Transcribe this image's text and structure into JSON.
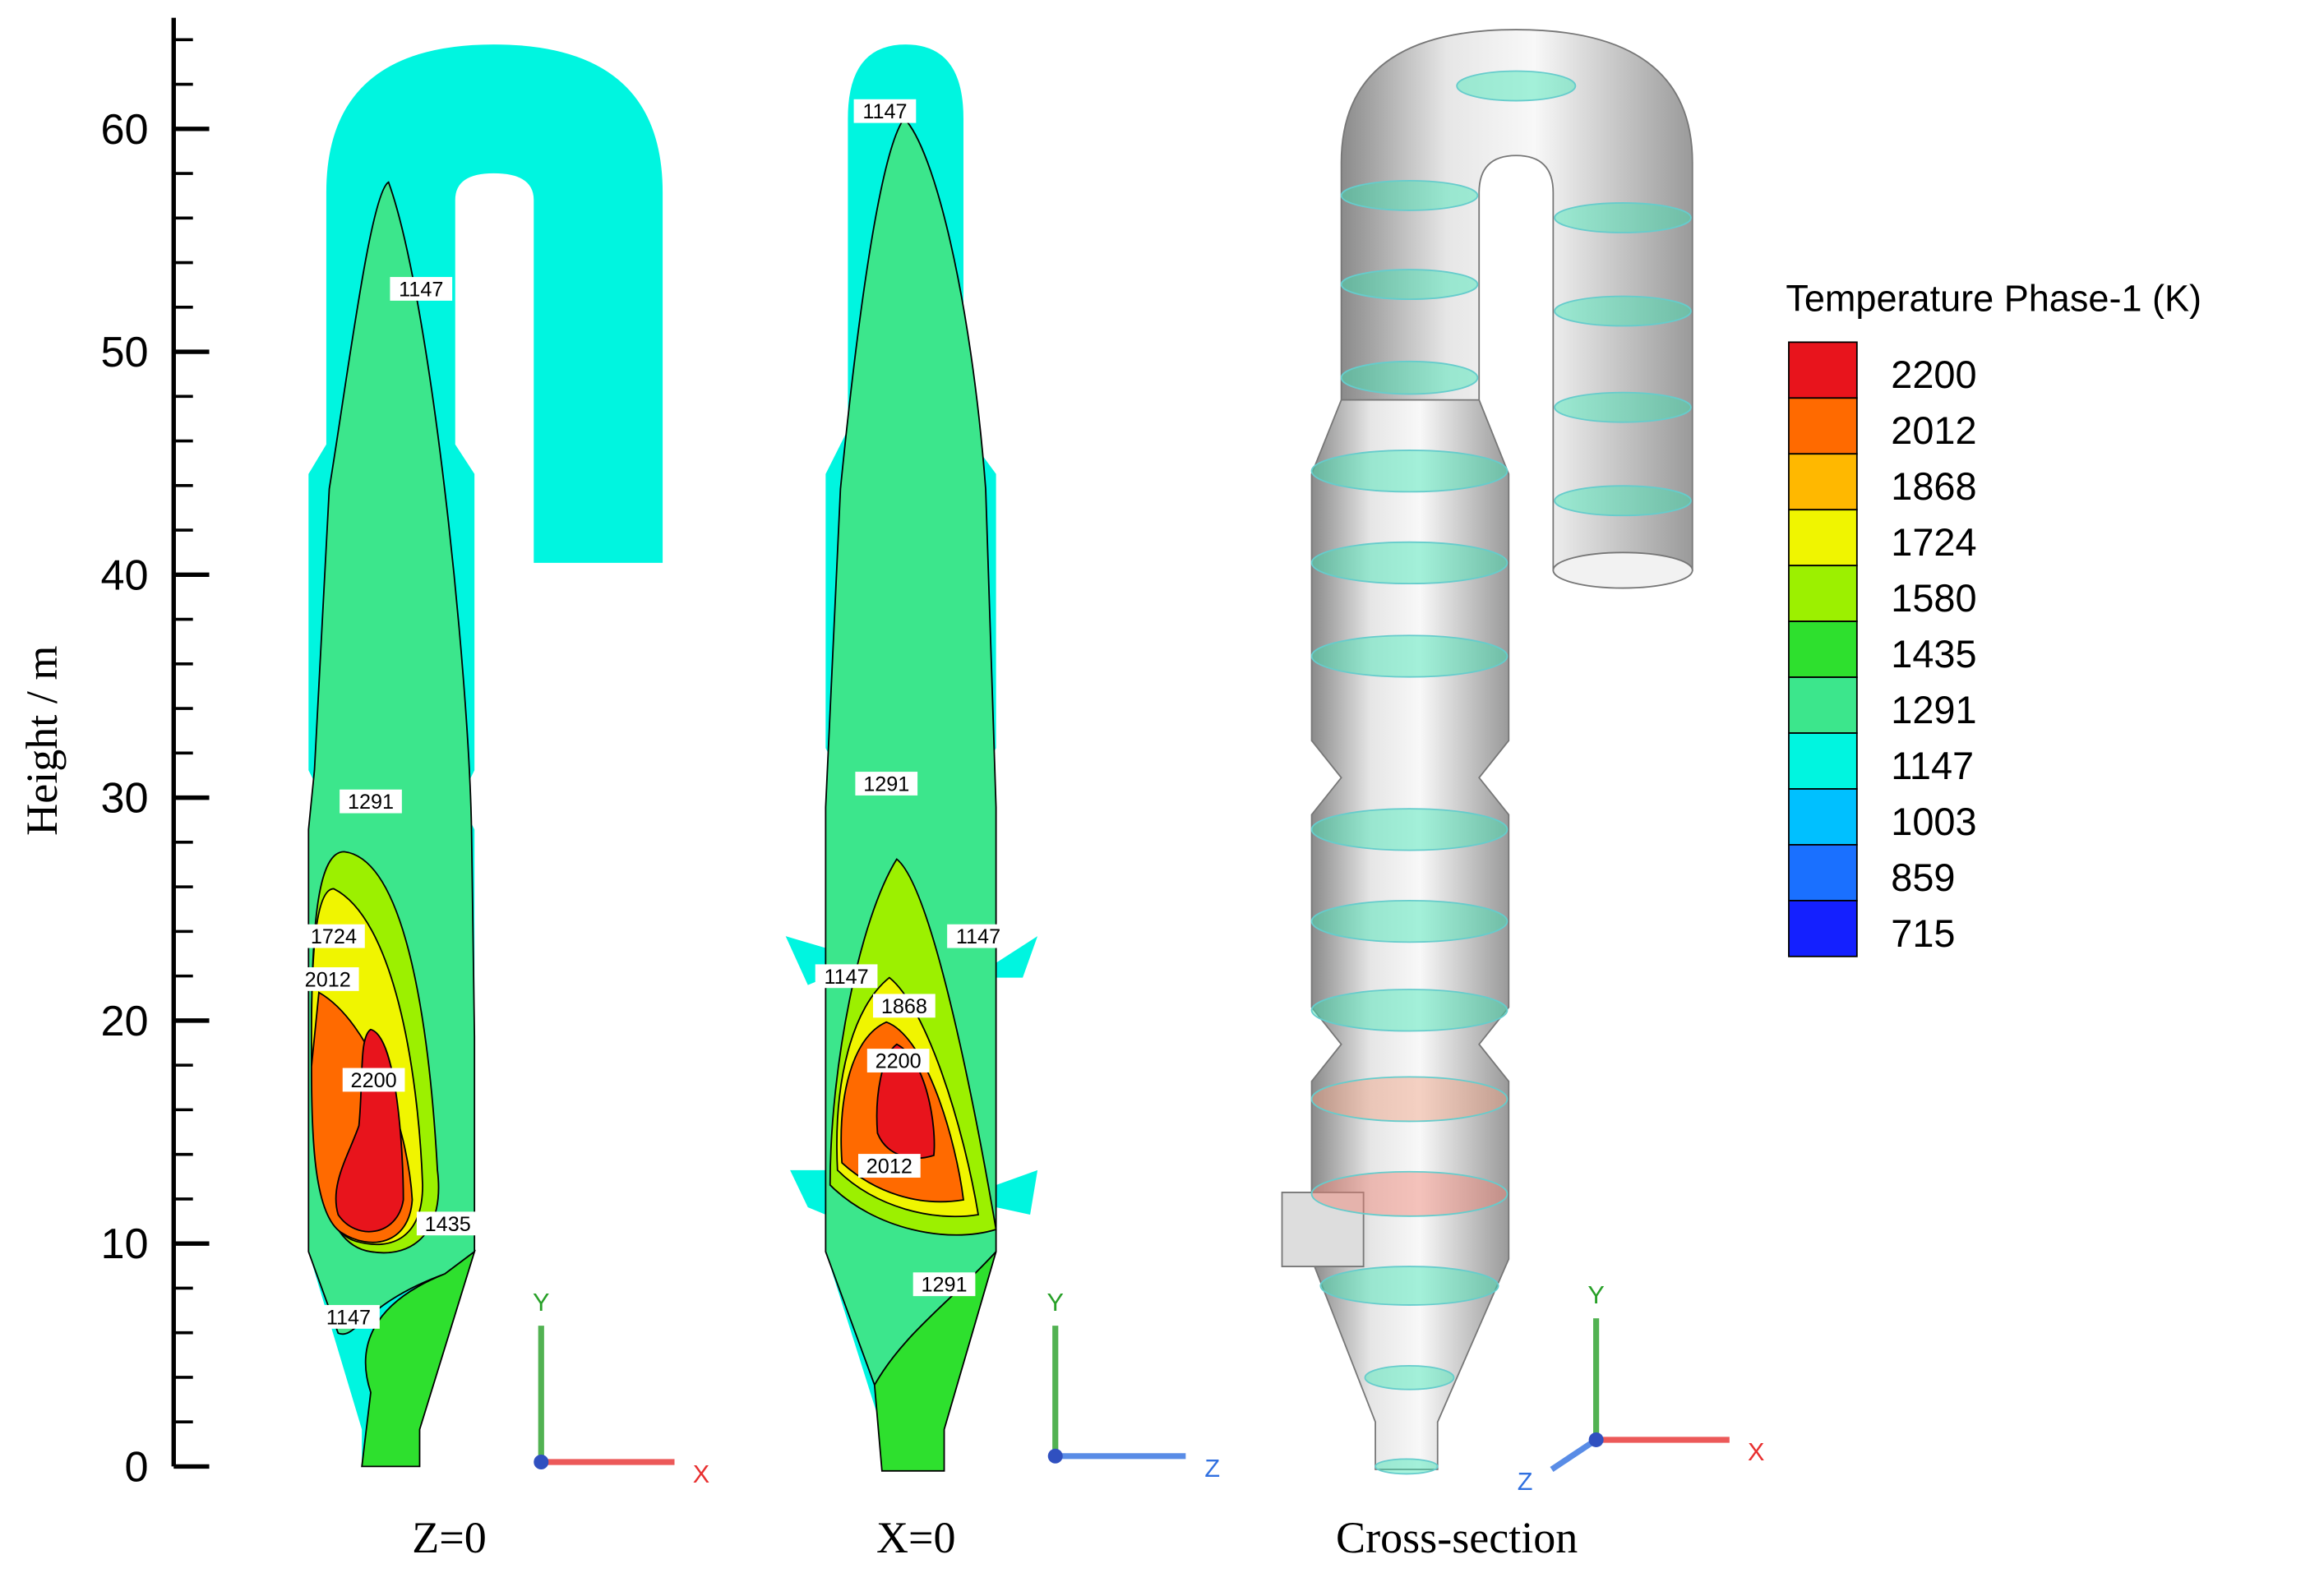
{
  "chart_data": {
    "type": "contour",
    "y_label": "Height / m",
    "ylim": [
      0,
      65
    ],
    "yticks": [
      0,
      10,
      20,
      30,
      40,
      50,
      60
    ],
    "yticks_minor": [
      2,
      4,
      6,
      8,
      12,
      14,
      16,
      18,
      22,
      24,
      26,
      28,
      32,
      34,
      36,
      38,
      42,
      44,
      46,
      48,
      52,
      54,
      56,
      58,
      62,
      64
    ],
    "panels": [
      {
        "caption": "Z=0",
        "contour_labels": [
          1147,
          1291,
          1724,
          2012,
          2200,
          1435,
          1147
        ],
        "axes": [
          "Y",
          "X"
        ]
      },
      {
        "caption": "X=0",
        "contour_labels": [
          1147,
          1291,
          1147,
          1147,
          1868,
          2200,
          2012,
          1291
        ],
        "axes": [
          "Y",
          "Z"
        ]
      },
      {
        "caption": "Cross-section",
        "axes": [
          "Y",
          "Z",
          "X"
        ]
      }
    ],
    "legend": {
      "title": "Temperature Phase-1 (K)",
      "levels": [
        2200,
        2012,
        1868,
        1724,
        1580,
        1435,
        1291,
        1147,
        1003,
        859,
        715
      ],
      "colors": [
        "#e8141c",
        "#ff6a00",
        "#ffb800",
        "#f0f500",
        "#9cf000",
        "#2ee02e",
        "#3ce68c",
        "#00f5e0",
        "#00c0ff",
        "#1a70ff",
        "#1420ff"
      ]
    }
  }
}
